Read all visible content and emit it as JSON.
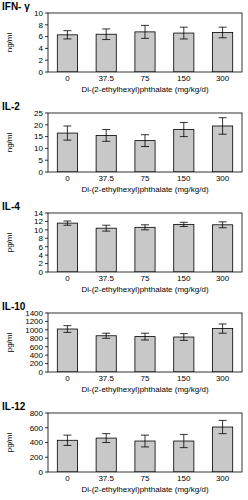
{
  "chart_data": [
    {
      "type": "bar",
      "title": "IFN- γ",
      "y_label": "ng/ml",
      "x_label": "Di-(2-ethylhexyl)phthalate (mg/kg/d)",
      "categories": [
        "0",
        "37.5",
        "75",
        "150",
        "300"
      ],
      "values": [
        6.3,
        6.4,
        6.8,
        6.6,
        6.7
      ],
      "errors": [
        0.7,
        0.9,
        1.1,
        1.0,
        0.9
      ],
      "color": "#c8c8c8",
      "ylim": [
        0,
        10
      ],
      "yticks": [
        0,
        2,
        4,
        6,
        8,
        10
      ],
      "grid": false
    },
    {
      "type": "bar",
      "title": "IL-2",
      "y_label": "ng/ml",
      "x_label": "Di-(2-ethylhexyl)phthalate (mg/kg/d)",
      "categories": [
        "0",
        "37.5",
        "75",
        "150",
        "300"
      ],
      "values": [
        16.5,
        15.5,
        13.3,
        18,
        19.5
      ],
      "errors": [
        3,
        2.5,
        2.5,
        3,
        3.5
      ],
      "color": "#c8c8c8",
      "ylim": [
        0,
        25
      ],
      "yticks": [
        0,
        5,
        10,
        15,
        20,
        25
      ],
      "grid": false
    },
    {
      "type": "bar",
      "title": "IL-4",
      "y_label": "pg/ml",
      "x_label": "Di-(2-ethylhexyl)phthalate (mg/kg/d)",
      "categories": [
        "0",
        "37.5",
        "75",
        "150",
        "300"
      ],
      "values": [
        11.6,
        10.4,
        10.6,
        11.3,
        11.2
      ],
      "errors": [
        0.5,
        0.7,
        0.6,
        0.5,
        0.7
      ],
      "color": "#c8c8c8",
      "ylim": [
        0,
        14
      ],
      "yticks": [
        0,
        2,
        4,
        6,
        8,
        10,
        12,
        14
      ],
      "grid": false
    },
    {
      "type": "bar",
      "title": "IL-10",
      "y_label": "pg/ml",
      "x_label": "Di-(2-ethylhexyl)phthalate (mg/kg/d)",
      "categories": [
        "0",
        "37.5",
        "75",
        "150",
        "300"
      ],
      "values": [
        1020,
        860,
        840,
        830,
        1030
      ],
      "errors": [
        80,
        60,
        80,
        80,
        110
      ],
      "color": "#c8c8c8",
      "ylim": [
        0,
        1400
      ],
      "yticks": [
        0,
        200,
        400,
        600,
        800,
        1000,
        1200,
        1400
      ],
      "grid": false
    },
    {
      "type": "bar",
      "title": "IL-12",
      "y_label": "pg/ml",
      "x_label": "Di-(2-ethylhexyl)phthalate (mg/kg/d)",
      "categories": [
        "0",
        "37.5",
        "75",
        "150",
        "300"
      ],
      "values": [
        430,
        460,
        420,
        420,
        610
      ],
      "errors": [
        70,
        60,
        80,
        90,
        90
      ],
      "color": "#c8c8c8",
      "ylim": [
        0,
        800
      ],
      "yticks": [
        0,
        200,
        400,
        600,
        800
      ],
      "grid": false
    }
  ]
}
